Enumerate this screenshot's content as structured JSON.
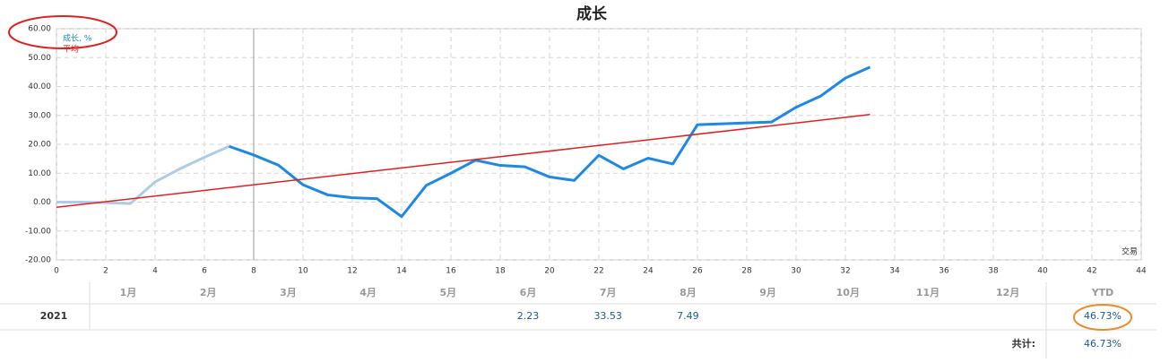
{
  "chart_data": {
    "type": "line",
    "title": "成长",
    "xlim": [
      0,
      44
    ],
    "xticks": [
      0,
      2,
      4,
      6,
      8,
      10,
      12,
      14,
      16,
      18,
      20,
      22,
      24,
      26,
      28,
      30,
      32,
      34,
      36,
      38,
      40,
      42,
      44
    ],
    "ylim": [
      -20,
      60
    ],
    "yticks": [
      {
        "value": -20,
        "label": "-20.00"
      },
      {
        "value": -10,
        "label": "-10.00"
      },
      {
        "value": 0,
        "label": "0.00"
      },
      {
        "value": 10,
        "label": "10.00"
      },
      {
        "value": 20,
        "label": "20.00"
      },
      {
        "value": 30,
        "label": "30.00"
      },
      {
        "value": 40,
        "label": "40.00"
      },
      {
        "value": 50,
        "label": "50.00"
      },
      {
        "value": 60,
        "label": "60.00"
      }
    ],
    "grid": true,
    "legend": "top-left",
    "annotation": "交易",
    "marker_x": 8,
    "series": [
      {
        "name": "成长, %",
        "color": "#1e88e5",
        "faded_color": "#aecbe8",
        "faded_until_x": 7,
        "x": [
          0,
          1,
          2,
          3,
          4,
          5,
          6,
          7,
          8,
          9,
          10,
          11,
          12,
          13,
          14,
          15,
          16,
          17,
          18,
          19,
          20,
          21,
          22,
          23,
          24,
          25,
          26,
          27,
          28,
          29,
          30,
          31,
          32,
          33
        ],
        "values": [
          0,
          0,
          -0.2,
          -0.5,
          7,
          11.5,
          15.5,
          19.3,
          16.3,
          12.8,
          6,
          2.5,
          1.5,
          1.2,
          -5,
          5.8,
          10,
          14.5,
          12.7,
          12.2,
          8.7,
          7.5,
          16.2,
          11.5,
          15.2,
          13.2,
          26.8,
          27.1,
          27.4,
          27.7,
          32.8,
          36.7,
          42.9,
          46.7
        ]
      },
      {
        "name": "平均",
        "color": "#e02020",
        "x": [
          0,
          33
        ],
        "values": [
          -1.8,
          30.3
        ]
      }
    ]
  },
  "table": {
    "header": [
      null,
      "1月",
      "2月",
      "3月",
      "4月",
      "5月",
      "6月",
      "7月",
      "8月",
      "9月",
      "10月",
      "11月",
      "12月",
      "YTD"
    ],
    "rows": [
      [
        "2021",
        null,
        null,
        null,
        null,
        null,
        "2.23",
        "33.53",
        "7.49",
        null,
        null,
        null,
        null,
        "46.73%"
      ]
    ],
    "footer": [
      "共计:",
      "46.73%"
    ]
  }
}
